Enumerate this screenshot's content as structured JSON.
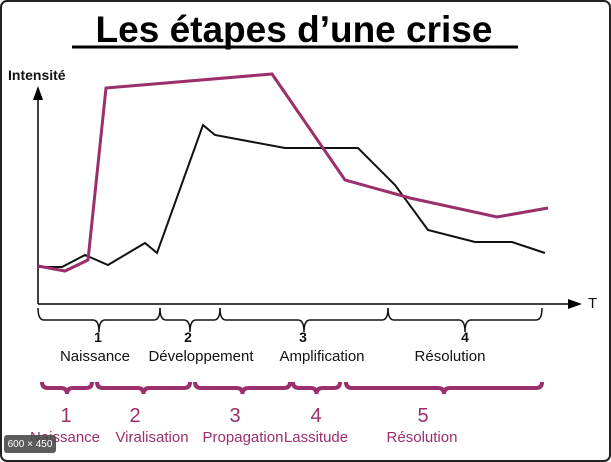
{
  "title": "Les étapes d’une crise",
  "axes": {
    "y_label": "Intensité",
    "x_label": "T"
  },
  "phases_original": [
    {
      "number": "1",
      "label": "Naissance"
    },
    {
      "number": "2",
      "label": "Développement"
    },
    {
      "number": "3",
      "label": "Amplification"
    },
    {
      "number": "4",
      "label": "Résolution"
    }
  ],
  "phases_new": [
    {
      "number": "1",
      "label": "Naissance"
    },
    {
      "number": "2",
      "label": "Viralisation"
    },
    {
      "number": "3",
      "label": "Propagation"
    },
    {
      "number": "4",
      "label": "Lassitude"
    },
    {
      "number": "5",
      "label": "Résolution"
    }
  ],
  "badge": "600 × 450"
}
